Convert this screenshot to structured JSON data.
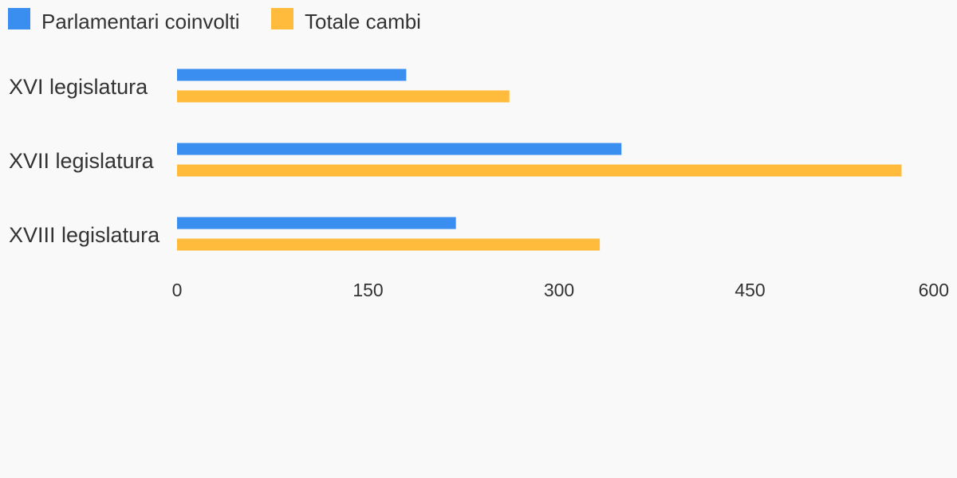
{
  "chart_data": {
    "type": "bar",
    "orientation": "horizontal",
    "categories": [
      "XVI legislatura",
      "XVII legislatura",
      "XVIII legislatura"
    ],
    "series": [
      {
        "name": "Parlamentari coinvolti",
        "color": "#3a8eef",
        "values": [
          180,
          349,
          219
        ]
      },
      {
        "name": "Totale cambi",
        "color": "#ffbb3c",
        "values": [
          261,
          569,
          332
        ]
      }
    ],
    "xlim": [
      0,
      600
    ],
    "xticks": [
      0,
      150,
      300,
      450,
      600
    ],
    "legend_position": "top-left",
    "grid": false
  }
}
